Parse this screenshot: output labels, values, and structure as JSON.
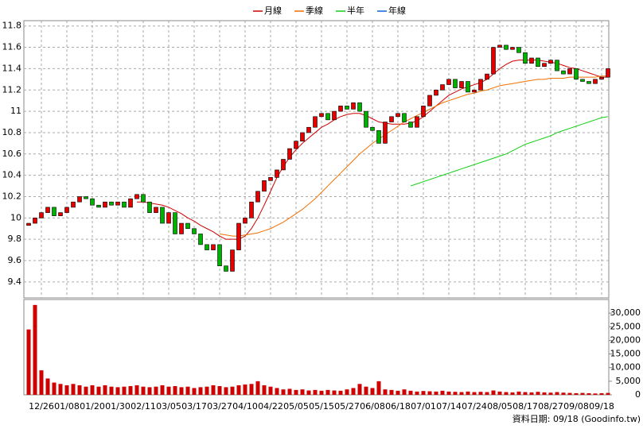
{
  "chart_data": {
    "type": "candlestick",
    "categories": [
      null,
      null,
      "12/26",
      null,
      null,
      null,
      "01/08",
      null,
      null,
      null,
      "01/20",
      null,
      null,
      null,
      "01/30",
      null,
      null,
      null,
      "02/11",
      null,
      null,
      null,
      "03/05",
      null,
      null,
      null,
      "03/17",
      null,
      null,
      null,
      "03/27",
      null,
      null,
      null,
      "04/10",
      null,
      null,
      null,
      "04/22",
      null,
      null,
      null,
      "05/05",
      null,
      null,
      null,
      "05/15",
      null,
      null,
      null,
      "05/27",
      null,
      null,
      null,
      "06/08",
      null,
      null,
      null,
      "06/18",
      null,
      null,
      null,
      "07/01",
      null,
      null,
      null,
      "07/14",
      null,
      null,
      null,
      "07/24",
      null,
      null,
      null,
      "08/05",
      null,
      null,
      null,
      "08/17",
      null,
      null,
      null,
      "08/27",
      null,
      null,
      null,
      "09/08",
      null,
      null,
      null,
      "09/18",
      null
    ],
    "open": [
      9.93,
      9.95,
      10.0,
      10.05,
      10.1,
      10.02,
      10.05,
      10.1,
      10.15,
      10.2,
      10.18,
      10.12,
      10.1,
      10.15,
      10.12,
      10.15,
      10.1,
      10.18,
      10.22,
      10.15,
      10.05,
      10.1,
      9.95,
      10.05,
      9.85,
      9.95,
      9.9,
      9.85,
      9.75,
      9.7,
      9.75,
      9.55,
      9.5,
      9.7,
      9.95,
      10.0,
      10.15,
      10.25,
      10.35,
      10.38,
      10.45,
      10.55,
      10.65,
      10.72,
      10.8,
      10.85,
      10.95,
      10.98,
      10.92,
      11.0,
      11.05,
      11.02,
      11.08,
      11.0,
      10.85,
      10.82,
      10.7,
      10.9,
      10.95,
      10.98,
      10.9,
      10.85,
      10.95,
      11.05,
      11.15,
      11.2,
      11.25,
      11.3,
      11.22,
      11.28,
      11.18,
      11.2,
      11.3,
      11.35,
      11.6,
      11.62,
      11.58,
      11.6,
      11.55,
      11.45,
      11.5,
      11.42,
      11.45,
      11.48,
      11.38,
      11.35,
      11.4,
      11.3,
      11.28,
      11.26,
      11.3,
      11.32
    ],
    "close": [
      9.95,
      10.0,
      10.05,
      10.1,
      10.02,
      10.05,
      10.1,
      10.15,
      10.2,
      10.18,
      10.12,
      10.1,
      10.15,
      10.12,
      10.15,
      10.1,
      10.18,
      10.22,
      10.15,
      10.05,
      10.1,
      9.95,
      10.05,
      9.85,
      9.95,
      9.9,
      9.85,
      9.75,
      9.7,
      9.75,
      9.55,
      9.5,
      9.7,
      9.95,
      10.0,
      10.15,
      10.25,
      10.35,
      10.38,
      10.45,
      10.55,
      10.65,
      10.72,
      10.8,
      10.85,
      10.95,
      10.98,
      10.92,
      11.0,
      11.05,
      11.02,
      11.08,
      11.0,
      10.85,
      10.82,
      10.7,
      10.9,
      10.95,
      10.98,
      10.9,
      10.85,
      10.95,
      11.05,
      11.15,
      11.2,
      11.25,
      11.3,
      11.22,
      11.28,
      11.18,
      11.2,
      11.3,
      11.35,
      11.6,
      11.62,
      11.58,
      11.6,
      11.55,
      11.45,
      11.5,
      11.42,
      11.45,
      11.48,
      11.38,
      11.35,
      11.4,
      11.3,
      11.28,
      11.26,
      11.3,
      11.32,
      11.4
    ],
    "up_color": "#e00000",
    "down_color": "#00b000",
    "volume": [
      24000,
      33000,
      9000,
      6000,
      4500,
      4000,
      3500,
      4000,
      3500,
      3000,
      3500,
      3000,
      3500,
      3000,
      2800,
      3000,
      3200,
      3500,
      3000,
      2800,
      3000,
      3500,
      3000,
      3200,
      2800,
      3000,
      2500,
      2800,
      3000,
      3500,
      3200,
      2800,
      3000,
      3500,
      3800,
      4000,
      5000,
      3500,
      3000,
      2500,
      2000,
      2200,
      1800,
      2000,
      1600,
      1800,
      1500,
      1800,
      1600,
      1500,
      2000,
      2500,
      4000,
      3000,
      2500,
      5000,
      2000,
      1800,
      1500,
      2000,
      1500,
      1200,
      1400,
      1300,
      1200,
      1500,
      1200,
      1100,
      1000,
      1200,
      1000,
      1100,
      1000,
      1600,
      1200,
      1000,
      900,
      1200,
      1000,
      900,
      1100,
      900,
      800,
      1000,
      800,
      700,
      600,
      700,
      600,
      500,
      600,
      700
    ],
    "volume_color": "#d00000",
    "series": [
      {
        "name": "月線",
        "color": "#d00000",
        "values": [
          null,
          null,
          null,
          null,
          null,
          null,
          null,
          null,
          null,
          null,
          null,
          null,
          null,
          null,
          null,
          null,
          null,
          10.15,
          10.15,
          10.14,
          10.13,
          10.12,
          10.1,
          10.07,
          10.04,
          10.0,
          9.97,
          9.93,
          9.9,
          9.87,
          9.83,
          9.8,
          9.8,
          9.8,
          9.83,
          9.9,
          10.0,
          10.12,
          10.25,
          10.38,
          10.48,
          10.57,
          10.64,
          10.7,
          10.75,
          10.8,
          10.85,
          10.88,
          10.92,
          10.95,
          10.97,
          10.98,
          10.98,
          10.96,
          10.93,
          10.9,
          10.89,
          10.88,
          10.88,
          10.88,
          10.89,
          10.91,
          10.95,
          11.0,
          11.05,
          11.1,
          11.15,
          11.18,
          11.21,
          11.23,
          11.25,
          11.27,
          11.3,
          11.35,
          11.4,
          11.44,
          11.47,
          11.48,
          11.48,
          11.48,
          11.48,
          11.47,
          11.46,
          11.45,
          11.43,
          11.41,
          11.4,
          11.38,
          11.36,
          11.34,
          11.32,
          11.32
        ]
      },
      {
        "name": "季線",
        "color": "#f07000",
        "values": [
          null,
          null,
          null,
          null,
          null,
          null,
          null,
          null,
          null,
          null,
          null,
          null,
          null,
          null,
          null,
          null,
          null,
          null,
          null,
          null,
          null,
          null,
          null,
          null,
          null,
          null,
          null,
          null,
          null,
          null,
          9.85,
          9.84,
          9.83,
          9.83,
          9.84,
          9.85,
          9.86,
          9.88,
          9.9,
          9.93,
          9.96,
          10.0,
          10.04,
          10.08,
          10.13,
          10.18,
          10.24,
          10.3,
          10.36,
          10.42,
          10.48,
          10.54,
          10.6,
          10.65,
          10.7,
          10.74,
          10.78,
          10.82,
          10.86,
          10.9,
          10.93,
          10.96,
          10.99,
          11.02,
          11.05,
          11.08,
          11.1,
          11.12,
          11.14,
          11.16,
          11.17,
          11.19,
          11.2,
          11.22,
          11.24,
          11.25,
          11.26,
          11.27,
          11.28,
          11.29,
          11.3,
          11.3,
          11.31,
          11.31,
          11.31,
          11.32,
          11.32,
          11.32,
          11.32,
          11.32,
          11.33,
          11.33
        ]
      },
      {
        "name": "半年",
        "color": "#10d010",
        "values": [
          null,
          null,
          null,
          null,
          null,
          null,
          null,
          null,
          null,
          null,
          null,
          null,
          null,
          null,
          null,
          null,
          null,
          null,
          null,
          null,
          null,
          null,
          null,
          null,
          null,
          null,
          null,
          null,
          null,
          null,
          null,
          null,
          null,
          null,
          null,
          null,
          null,
          null,
          null,
          null,
          null,
          null,
          null,
          null,
          null,
          null,
          null,
          null,
          null,
          null,
          null,
          null,
          null,
          null,
          null,
          null,
          null,
          null,
          null,
          null,
          10.3,
          10.32,
          10.34,
          10.36,
          10.38,
          10.4,
          10.42,
          10.44,
          10.46,
          10.48,
          10.5,
          10.52,
          10.54,
          10.56,
          10.58,
          10.6,
          10.63,
          10.66,
          10.69,
          10.71,
          10.73,
          10.75,
          10.77,
          10.8,
          10.82,
          10.84,
          10.86,
          10.88,
          10.9,
          10.92,
          10.94,
          10.95
        ]
      },
      {
        "name": "年線",
        "color": "#1060e0"
      }
    ],
    "ylim": [
      9.25,
      11.85
    ],
    "yticks": [
      9.4,
      9.6,
      9.8,
      10,
      10.2,
      10.4,
      10.6,
      10.8,
      11,
      11.2,
      11.4,
      11.6,
      11.8
    ],
    "y2lim": [
      0,
      35000
    ],
    "y2ticks": [
      0,
      {
        "value": 5000,
        "label": "5,000"
      },
      {
        "value": 10000,
        "label": "10,000"
      },
      {
        "value": 15000,
        "label": "15,000"
      },
      {
        "value": 20000,
        "label": "20,000"
      },
      {
        "value": 25000,
        "label": "25,000"
      },
      {
        "value": 30000,
        "label": "30,000"
      }
    ],
    "grid": true,
    "footer": "資料日期: 09/18  (Goodinfo.tw)"
  }
}
